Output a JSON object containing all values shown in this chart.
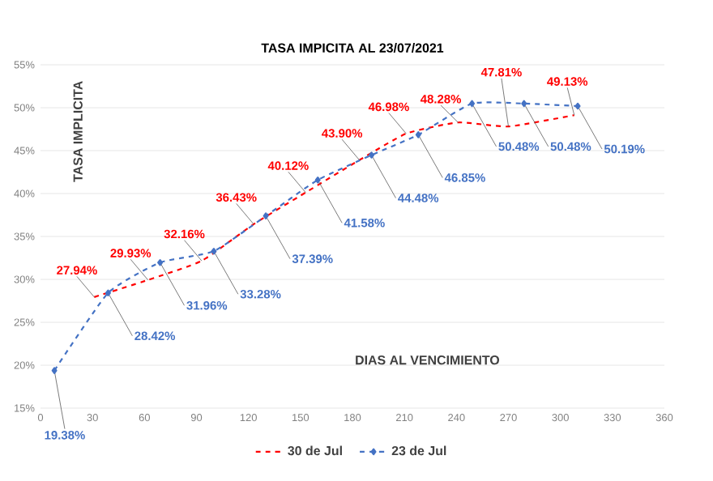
{
  "chart_data": {
    "type": "line",
    "title": "TASA IMPICITA AL 23/07/2021",
    "xlabel": "DIAS AL VENCIMIENTO",
    "ylabel": "TASA IMPLICITA",
    "xlim": [
      0,
      360
    ],
    "xticks": [
      0,
      30,
      60,
      90,
      120,
      150,
      180,
      210,
      240,
      270,
      300,
      330,
      360
    ],
    "ylim": [
      15,
      55
    ],
    "yticks": [
      {
        "value": 15,
        "label": "15%"
      },
      {
        "value": 20,
        "label": "20%"
      },
      {
        "value": 25,
        "label": "25%"
      },
      {
        "value": 30,
        "label": "30%"
      },
      {
        "value": 35,
        "label": "35%"
      },
      {
        "value": 40,
        "label": "40%"
      },
      {
        "value": 45,
        "label": "45%"
      },
      {
        "value": 50,
        "label": "50%"
      },
      {
        "value": 55,
        "label": "55%"
      }
    ],
    "grid": "y",
    "legend": "bottom",
    "line_style": "dashed",
    "series": [
      {
        "name": "30 de Jul",
        "color": "#ff0000",
        "marker": "none",
        "x": [
          31,
          62,
          93,
          123,
          153,
          184,
          211,
          241,
          270,
          308
        ],
        "values": [
          27.94,
          29.93,
          32.16,
          36.43,
          40.12,
          43.9,
          46.98,
          48.28,
          47.81,
          49.13
        ],
        "value_labels": [
          "27.94%",
          "29.93%",
          "32.16%",
          "36.43%",
          "40.12%",
          "43.90%",
          "46.98%",
          "48.28%",
          "47.81%",
          "49.13%"
        ]
      },
      {
        "name": "23 de Jul",
        "color": "#4472c4",
        "marker": "diamond",
        "x": [
          8,
          39,
          69,
          100,
          130,
          160,
          191,
          218,
          249,
          279,
          310
        ],
        "values": [
          19.38,
          28.42,
          31.96,
          33.28,
          37.39,
          41.58,
          44.48,
          46.85,
          50.48,
          50.48,
          50.19
        ],
        "value_labels": [
          "19.38%",
          "28.42%",
          "31.96%",
          "33.28%",
          "37.39%",
          "41.58%",
          "44.48%",
          "46.85%",
          "50.48%",
          "50.48%",
          "50.19%"
        ]
      }
    ]
  }
}
